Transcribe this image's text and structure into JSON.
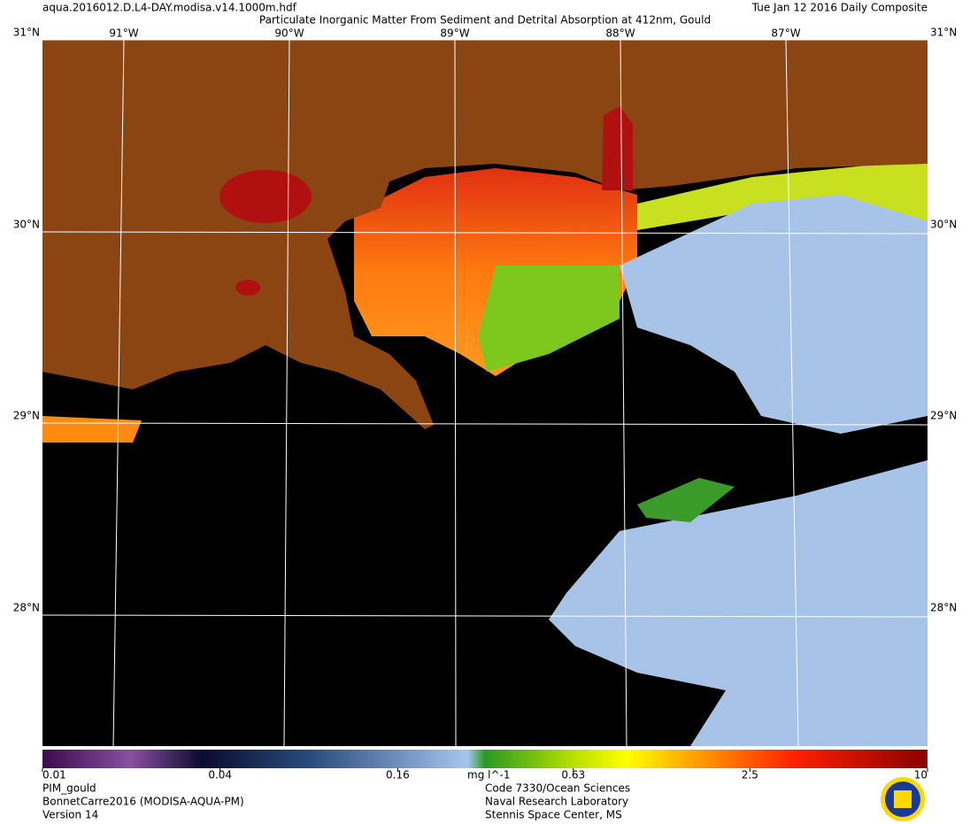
{
  "header": {
    "file": "aqua.2016012.D.L4-DAY.modisa.v14.1000m.hdf",
    "title": "Particulate Inorganic Matter From Sediment and Detrital Absorption at 412nm, Gould",
    "date": "Tue Jan 12 2016 Daily Composite"
  },
  "map": {
    "lon_labels": [
      "91°W",
      "90°W",
      "89°W",
      "88°W",
      "87°W"
    ],
    "lat_labels": [
      "31°N",
      "30°N",
      "29°N",
      "28°N"
    ]
  },
  "colorbar": {
    "ticks": [
      0.01,
      0.04,
      0.16,
      0.63,
      2.5,
      10
    ],
    "unit": "mg l^-1",
    "log_scale": true
  },
  "footer": {
    "left": [
      "PIM_gould",
      "BonnetCarre2016 (MODISA-AQUA-PM)",
      "Version 14"
    ],
    "right": [
      "Code 7330/Ocean Sciences",
      "Naval Research Laboratory",
      "Stennis Space Center, MS"
    ]
  }
}
